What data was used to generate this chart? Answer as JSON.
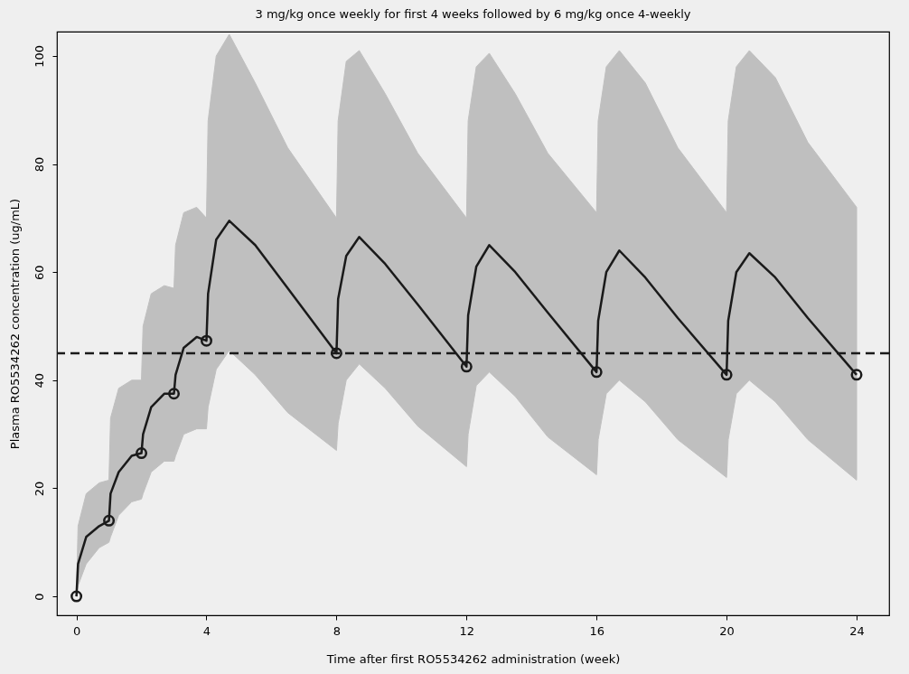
{
  "chart_data": {
    "type": "line",
    "title": "3 mg/kg once weekly for first 4 weeks followed by 6 mg/kg once 4-weekly",
    "xlabel": "Time after first RO5534262 administration (week)",
    "ylabel": "Plasma RO5534262 concentration (ug/mL)",
    "x": [
      0,
      0.05,
      0.3,
      0.7,
      1,
      1.05,
      1.3,
      1.7,
      2,
      2.05,
      2.3,
      2.7,
      3,
      3.05,
      3.3,
      3.7,
      4,
      4.05,
      4.3,
      4.7,
      5.5,
      6.5,
      8,
      8.05,
      8.3,
      8.7,
      9.5,
      10.5,
      12,
      12.05,
      12.3,
      12.7,
      13.5,
      14.5,
      16,
      16.05,
      16.3,
      16.7,
      17.5,
      18.5,
      20,
      20.05,
      20.3,
      20.7,
      21.5,
      22.5,
      24
    ],
    "series": [
      {
        "color": "#1a1a1a",
        "marker": "none",
        "line_style": "solid",
        "values": [
          0,
          6,
          11,
          13,
          14,
          19,
          23,
          26,
          26.5,
          30,
          35,
          37.5,
          37.5,
          41,
          46,
          48,
          47.3,
          56,
          66,
          69.5,
          65,
          57,
          45,
          55,
          63,
          66.5,
          61.5,
          54,
          42.5,
          52,
          61,
          65,
          60,
          52.5,
          41.5,
          51,
          60,
          64,
          59,
          51.5,
          41,
          51,
          60,
          63.5,
          59,
          51.5,
          41
        ],
        "upper": [
          0,
          13,
          19,
          21,
          21.5,
          33,
          38.5,
          40,
          40,
          50,
          56,
          57.5,
          57,
          65,
          71,
          72,
          70,
          88,
          100,
          104,
          95,
          83,
          70,
          88,
          99,
          101,
          93,
          82,
          70,
          88,
          98,
          100.5,
          93,
          82,
          71,
          88,
          98,
          101,
          95,
          83,
          71,
          88,
          98,
          101,
          96,
          84,
          72
        ],
        "lower": [
          0,
          2,
          6,
          9,
          10,
          11,
          15,
          17.5,
          18,
          19,
          23,
          25,
          25,
          26,
          30,
          31,
          31,
          35,
          42,
          45.5,
          41,
          34,
          27,
          32,
          40,
          43,
          38.5,
          31.5,
          24,
          30,
          39,
          41.5,
          37,
          29.5,
          22.5,
          29,
          37.5,
          40,
          36,
          29,
          22,
          29,
          37.5,
          40,
          36,
          29,
          21.5
        ]
      },
      {
        "type": "scatter",
        "color": "#1a1a1a",
        "marker": "circle",
        "x": [
          0,
          1,
          2,
          3,
          4,
          8,
          12,
          16,
          20,
          24
        ],
        "values": [
          0,
          14,
          26.5,
          37.5,
          47.3,
          45,
          42.5,
          41.5,
          41,
          41
        ]
      }
    ],
    "ref_lines": [
      {
        "axis": "y",
        "value": 45,
        "color": "#1a1a1a",
        "line_style": "dashed"
      }
    ],
    "xlim": [
      -0.6,
      25
    ],
    "xticks": [
      0,
      4,
      8,
      12,
      16,
      20,
      24
    ],
    "ylim": [
      -3.5,
      104.5
    ],
    "yticks": [
      0,
      20,
      40,
      60,
      80,
      100
    ],
    "grid": false
  }
}
